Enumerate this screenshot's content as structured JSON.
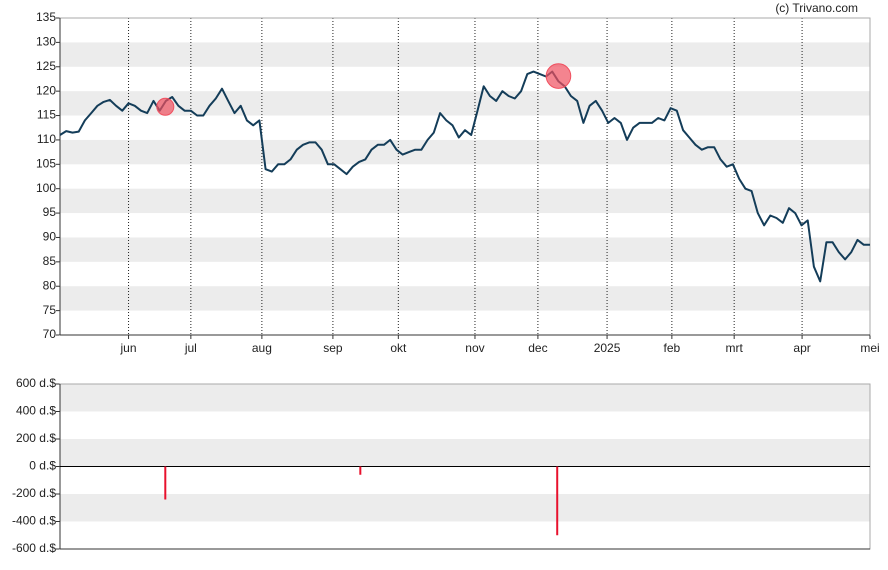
{
  "chart_data": [
    {
      "type": "line",
      "credit": "(c) Trivano.com",
      "xlim": [
        0,
        130
      ],
      "xticks": [
        {
          "value": 11,
          "label": "jun"
        },
        {
          "value": 21,
          "label": "jul"
        },
        {
          "value": 32.4,
          "label": "aug"
        },
        {
          "value": 43.8,
          "label": "sep"
        },
        {
          "value": 54.3,
          "label": "okt"
        },
        {
          "value": 66.6,
          "label": "nov"
        },
        {
          "value": 76.7,
          "label": "dec"
        },
        {
          "value": 87.8,
          "label": "2025"
        },
        {
          "value": 98.2,
          "label": "feb"
        },
        {
          "value": 108.2,
          "label": "mrt"
        },
        {
          "value": 119.1,
          "label": "apr"
        },
        {
          "value": 130,
          "label": "mei"
        }
      ],
      "ylim": [
        70,
        135
      ],
      "yticks": [
        70,
        75,
        80,
        85,
        90,
        95,
        100,
        105,
        110,
        115,
        120,
        125,
        130,
        135
      ],
      "grid": true,
      "series": [
        {
          "color": "#143d59",
          "x": [
            0,
            1,
            2,
            3,
            4,
            5,
            6,
            7,
            8,
            9,
            10,
            11,
            12,
            13,
            14,
            15,
            16,
            17,
            18,
            19,
            20,
            21,
            22,
            23,
            24,
            25,
            26,
            27,
            28,
            29,
            30,
            31,
            32,
            33,
            34,
            35,
            36,
            37,
            38,
            39,
            40,
            41,
            42,
            43,
            44,
            45,
            46,
            47,
            48,
            49,
            50,
            51,
            52,
            53,
            54,
            55,
            56,
            57,
            58,
            59,
            60,
            61,
            62,
            63,
            64,
            65,
            66,
            67,
            68,
            69,
            70,
            71,
            72,
            73,
            74,
            75,
            76,
            77,
            78,
            79,
            80,
            81,
            82,
            83,
            84,
            85,
            86,
            87,
            88,
            89,
            90,
            91,
            92,
            93,
            94,
            95,
            96,
            97,
            98,
            99,
            100,
            101,
            102,
            103,
            104,
            105,
            106,
            107,
            108,
            109,
            110,
            111,
            112,
            113,
            114,
            115,
            116,
            117,
            118,
            119,
            120,
            121,
            122,
            123,
            124,
            125,
            126,
            127,
            128,
            129,
            130
          ],
          "values": [
            111,
            111.8,
            111.5,
            111.7,
            114,
            115.5,
            117,
            117.8,
            118.2,
            117,
            116,
            117.5,
            117,
            116,
            115.5,
            118,
            116,
            118,
            118.8,
            117,
            116,
            116,
            115,
            115,
            117,
            118.5,
            120.5,
            118,
            115.5,
            117,
            114,
            113,
            114,
            104,
            103.5,
            105,
            105,
            106,
            108,
            109,
            109.5,
            109.5,
            108,
            105,
            105,
            104,
            103,
            104.5,
            105.5,
            106,
            108,
            109,
            109,
            110,
            108,
            107,
            107.5,
            108,
            108,
            110,
            111.5,
            115.5,
            114,
            113,
            110.5,
            112,
            111,
            116,
            121,
            119,
            118,
            120,
            119,
            118.5,
            120,
            123.5,
            124,
            123.5,
            123,
            124,
            122,
            121,
            119,
            118,
            113.5,
            117,
            118,
            116,
            113.5,
            114.5,
            113.5,
            110,
            112.5,
            113.5,
            113.5,
            113.5,
            114.5,
            114,
            116.5,
            116,
            112,
            110.5,
            109,
            108,
            108.5,
            108.5,
            106,
            104.5,
            105,
            102,
            100,
            99.5,
            95,
            92.5,
            94.5,
            94,
            93,
            96,
            95,
            92.5,
            93.5,
            84,
            81,
            89,
            89,
            87,
            85.5,
            87,
            89.5,
            88.5,
            88.5
          ]
        }
      ],
      "markers": {
        "color": "#f0505f",
        "x": [
          16.9,
          80
        ],
        "values": [
          116.8,
          123.1
        ],
        "sizes": [
          240,
          500
        ]
      }
    },
    {
      "type": "bar",
      "xlim": [
        0,
        130
      ],
      "ylim": [
        -600,
        600
      ],
      "yticks": [
        {
          "value": -600,
          "label": "-600 d.$"
        },
        {
          "value": -400,
          "label": "-400 d.$"
        },
        {
          "value": -200,
          "label": "-200 d.$"
        },
        {
          "value": 0,
          "label": "0 d.$"
        },
        {
          "value": 200,
          "label": "200 d.$"
        },
        {
          "value": 400,
          "label": "400 d.$"
        },
        {
          "value": 600,
          "label": "600 d.$"
        }
      ],
      "grid": true,
      "color": "#e8112d",
      "x": [
        16.9,
        48.2,
        79.8
      ],
      "values": [
        -240,
        -60,
        -500
      ]
    }
  ]
}
